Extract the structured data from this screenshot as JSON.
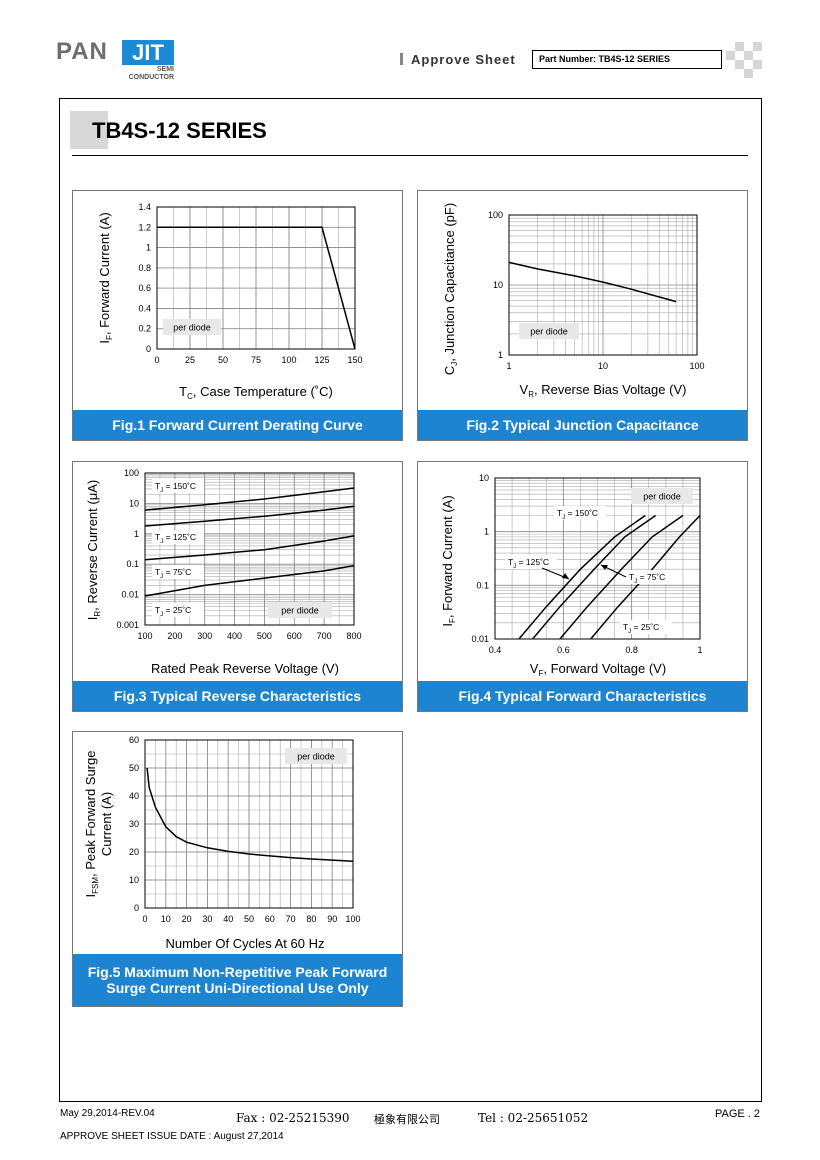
{
  "header": {
    "logo_main": "PAN",
    "logo_accent": "JIT",
    "logo_sub1": "SEMI",
    "logo_sub2": "CONDUCTOR",
    "approve_label": "Approve Sheet",
    "part_number": "Part Number: TB4S-12 SERIES"
  },
  "page_title": "TB4S-12 SERIES",
  "figures": {
    "fig1": {
      "caption": "Fig.1 Forward Current Derating Curve",
      "note": "per diode"
    },
    "fig2": {
      "caption": "Fig.2 Typical Junction Capacitance",
      "note": "per diode"
    },
    "fig3": {
      "caption": "Fig.3 Typical Reverse Characteristics",
      "note": "per diode"
    },
    "fig4": {
      "caption": "Fig.4 Typical Forward Characteristics",
      "note": "per diode"
    },
    "fig5": {
      "caption_line1": "Fig.5 Maximum Non-Repetitive Peak Forward",
      "caption_line2": "Surge Current Uni-Directional Use Only",
      "note": "per diode"
    }
  },
  "footer": {
    "date_rev": "May 29,2014-REV.04",
    "fax": "Fax : 02-25215390",
    "company": "極象有限公司",
    "tel": "Tel : 02-25651052",
    "page": "PAGE . 2",
    "issue_date": "APPROVE SHEET ISSUE DATE : August 27,2014"
  },
  "colors": {
    "caption_bg": "#1c84d0",
    "logo_blue": "#1a8ad4"
  },
  "chart_data": [
    {
      "id": "fig1",
      "type": "line",
      "xlabel": "T",
      "xlabel_sub": "C",
      "xlabel_rest": ", Case Temperature  (˚C)",
      "ylabel": "I",
      "ylabel_sub": "F",
      "ylabel_rest": ", Forward Current (A)",
      "xlim": [
        0,
        150
      ],
      "ylim": [
        0,
        1.4
      ],
      "xticks": [
        0,
        25,
        50,
        75,
        100,
        125,
        150
      ],
      "yticks": [
        0,
        0.2,
        0.4,
        0.6,
        0.8,
        1,
        1.2,
        1.4
      ],
      "grid": true,
      "series": [
        {
          "x": [
            0,
            125,
            150
          ],
          "y": [
            1.2,
            1.2,
            0
          ]
        }
      ]
    },
    {
      "id": "fig2",
      "type": "line",
      "xscale": "log",
      "yscale": "log",
      "xlabel": "V",
      "xlabel_sub": "R",
      "xlabel_rest": ", Reverse Bias Voltage (V)",
      "ylabel": "C",
      "ylabel_sub": "J",
      "ylabel_rest": ", Junction Capacitance (pF)",
      "xlim": [
        1,
        100
      ],
      "ylim": [
        1,
        100
      ],
      "xticks": [
        1,
        10,
        100
      ],
      "yticks": [
        1,
        10,
        100
      ],
      "grid": true,
      "series": [
        {
          "x": [
            1,
            2,
            5,
            10,
            20,
            60
          ],
          "y": [
            21,
            17,
            13.5,
            11,
            8.7,
            5.8
          ]
        }
      ]
    },
    {
      "id": "fig3",
      "type": "line",
      "yscale": "log",
      "xlabel": "Rated Peak Reverse Voltage (V)",
      "ylabel": "I",
      "ylabel_sub": "R",
      "ylabel_rest": ", Reverse Current (μA)",
      "xlim": [
        100,
        800
      ],
      "ylim": [
        0.001,
        100
      ],
      "xticks": [
        100,
        200,
        300,
        400,
        500,
        600,
        700,
        800
      ],
      "yticks": [
        0.001,
        0.01,
        0.1,
        1,
        10,
        100
      ],
      "ytick_labels": [
        "0.001",
        "0.01",
        "0.1",
        "1",
        "10",
        "100"
      ],
      "grid": true,
      "series": [
        {
          "name": "T",
          "name_sub": "J",
          "name_rest": " = 150˚C",
          "x": [
            100,
            300,
            500,
            700,
            800
          ],
          "y": [
            6,
            9,
            14,
            24,
            32
          ]
        },
        {
          "name": "T",
          "name_sub": "J",
          "name_rest": " = 125˚C",
          "x": [
            100,
            300,
            500,
            700,
            800
          ],
          "y": [
            1.8,
            2.6,
            3.8,
            6,
            8
          ]
        },
        {
          "name": "T",
          "name_sub": "J",
          "name_rest": " = 75˚C",
          "x": [
            100,
            300,
            500,
            700,
            800
          ],
          "y": [
            0.14,
            0.2,
            0.3,
            0.58,
            0.85
          ]
        },
        {
          "name": "T",
          "name_sub": "J",
          "name_rest": " = 25˚C",
          "x": [
            100,
            300,
            500,
            700,
            800
          ],
          "y": [
            0.009,
            0.02,
            0.035,
            0.06,
            0.09
          ]
        }
      ]
    },
    {
      "id": "fig4",
      "type": "line",
      "yscale": "log",
      "xlabel": "V",
      "xlabel_sub": "F",
      "xlabel_rest": ", Forward Voltage (V)",
      "ylabel": "I",
      "ylabel_sub": "F",
      "ylabel_rest": ", Forward Current (A)",
      "xlim": [
        0.4,
        1
      ],
      "ylim": [
        0.01,
        10
      ],
      "xticks": [
        0.4,
        0.6,
        0.8,
        1
      ],
      "yticks": [
        0.01,
        0.1,
        1,
        10
      ],
      "ytick_labels": [
        "0.01",
        "0.1",
        "1",
        "10"
      ],
      "grid": true,
      "series": [
        {
          "name": "T",
          "name_sub": "J",
          "name_rest": " = 150˚C",
          "x": [
            0.47,
            0.55,
            0.65,
            0.75,
            0.84
          ],
          "y": [
            0.01,
            0.04,
            0.2,
            0.8,
            2
          ]
        },
        {
          "name": "T",
          "name_sub": "J",
          "name_rest": " = 125˚C",
          "x": [
            0.51,
            0.59,
            0.69,
            0.78,
            0.87
          ],
          "y": [
            0.01,
            0.04,
            0.2,
            0.8,
            2
          ]
        },
        {
          "name": "T",
          "name_sub": "J",
          "name_rest": " = 75˚C",
          "x": [
            0.59,
            0.67,
            0.77,
            0.86,
            0.95
          ],
          "y": [
            0.01,
            0.04,
            0.2,
            0.8,
            2
          ]
        },
        {
          "name": "T",
          "name_sub": "J",
          "name_rest": " = 25˚C",
          "x": [
            0.68,
            0.76,
            0.86,
            0.94,
            1.02
          ],
          "y": [
            0.01,
            0.04,
            0.2,
            0.8,
            2
          ]
        }
      ]
    },
    {
      "id": "fig5",
      "type": "line",
      "xlabel": "Number Of Cycles At 60 Hz",
      "ylabel_line1": "Peak Forward Surge",
      "ylabel_line2": "Current (A)",
      "ylabel_prefix": "I",
      "ylabel_sub": "FSM",
      "xlim": [
        0,
        100
      ],
      "ylim": [
        0,
        60
      ],
      "xticks": [
        0,
        10,
        20,
        30,
        40,
        50,
        60,
        70,
        80,
        90,
        100
      ],
      "yticks": [
        0,
        10,
        20,
        30,
        40,
        50,
        60
      ],
      "grid": true,
      "series": [
        {
          "x": [
            1,
            2,
            5,
            10,
            15,
            20,
            30,
            40,
            50,
            60,
            70,
            80,
            90,
            100
          ],
          "y": [
            50,
            43,
            36,
            29,
            25.5,
            23.5,
            21.5,
            20.2,
            19.3,
            18.6,
            18,
            17.5,
            17.1,
            16.7
          ]
        }
      ]
    }
  ]
}
